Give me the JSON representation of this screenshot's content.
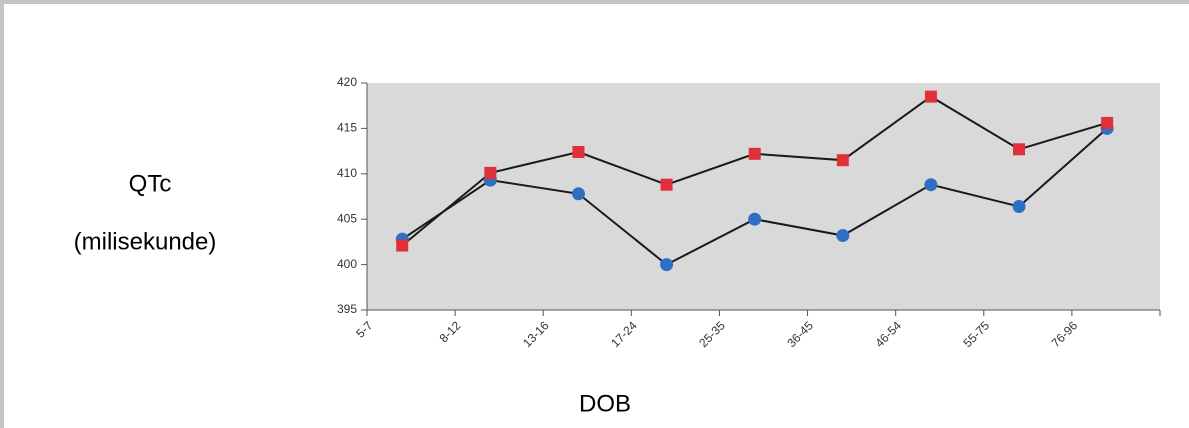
{
  "chart_data": {
    "type": "line",
    "y_label": [
      "QTc",
      "(milisekunde)"
    ],
    "x_label": "DOB",
    "categories": [
      "5-7",
      "8-12",
      "13-16",
      "17-24",
      "25-35",
      "36-45",
      "46-54",
      "55-75",
      "76-96"
    ],
    "series": [
      {
        "color": "#2e6fc4",
        "marker": "circle",
        "values": [
          402.8,
          409.3,
          407.8,
          400,
          405,
          403.2,
          408.8,
          406.4,
          415
        ]
      },
      {
        "color": "#e0303a",
        "marker": "square",
        "values": [
          402.1,
          410.1,
          412.4,
          408.8,
          412.2,
          411.5,
          418.5,
          412.7,
          415.6
        ]
      }
    ],
    "line_color": "#1a1a1a",
    "ylim": [
      395,
      420
    ],
    "yticks": [
      395,
      400,
      405,
      410,
      415,
      420
    ],
    "plot_background": "#d9d9d9"
  }
}
